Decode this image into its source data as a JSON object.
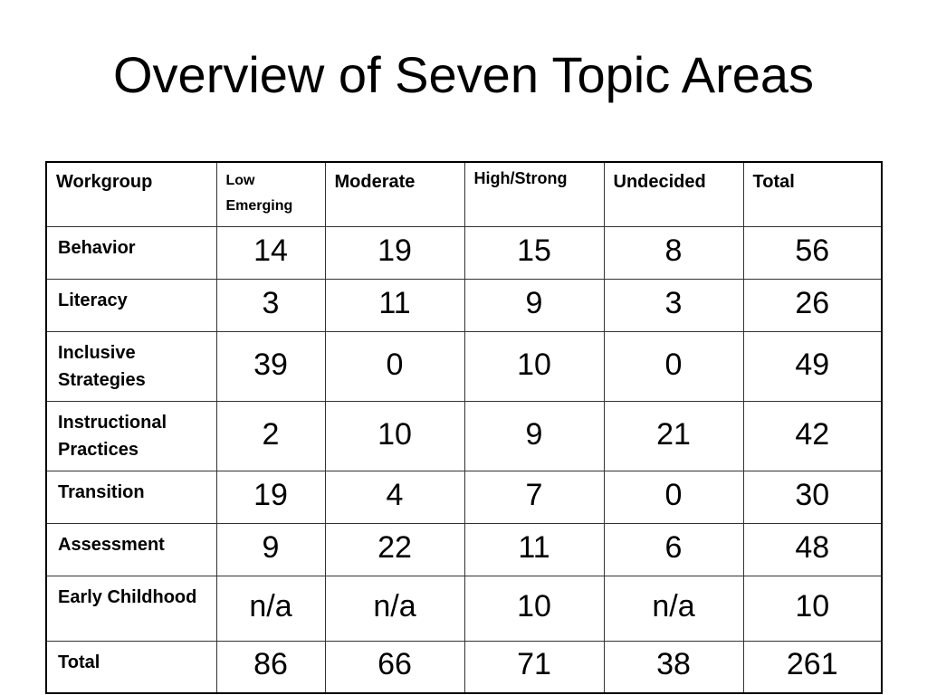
{
  "title": "Overview of Seven Topic Areas",
  "table": {
    "header": [
      "Workgroup",
      "Low Emerging",
      "Moderate",
      "High/Strong",
      "Undecided",
      "Total"
    ],
    "rows": [
      [
        "Behavior",
        14,
        19,
        15,
        8,
        56
      ],
      [
        "Literacy",
        3,
        11,
        9,
        3,
        26
      ],
      [
        "Inclusive Strategies",
        39,
        0,
        10,
        0,
        49
      ],
      [
        "Instructional Practices",
        2,
        10,
        9,
        21,
        42
      ],
      [
        "Transition",
        19,
        4,
        7,
        0,
        30
      ],
      [
        "Assessment",
        9,
        22,
        11,
        6,
        48
      ],
      [
        "Early Childhood",
        "n/a",
        "n/a",
        10,
        "n/a",
        10
      ],
      [
        "Total",
        86,
        66,
        71,
        38,
        261
      ]
    ]
  }
}
